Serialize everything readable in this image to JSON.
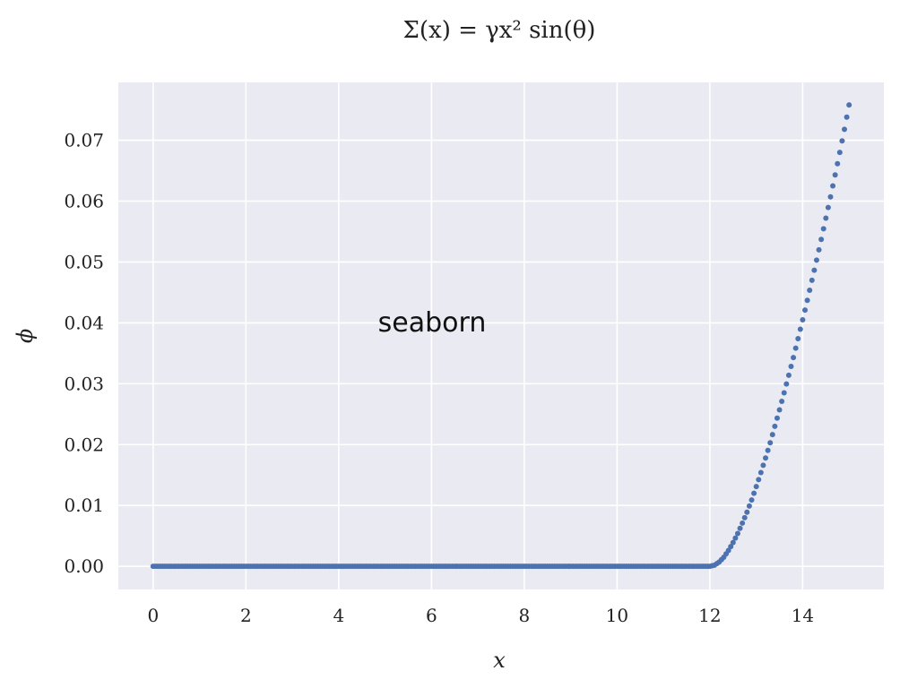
{
  "chart_data": {
    "type": "scatter",
    "title": "Σ(x) = γx² sin(θ)",
    "xlabel": "x",
    "ylabel": "ϕ",
    "xlim": [
      -0.75,
      15.75
    ],
    "ylim": [
      -0.0038,
      0.0795
    ],
    "xticks": [
      0,
      2,
      4,
      6,
      8,
      10,
      12,
      14
    ],
    "xtick_labels": [
      "0",
      "2",
      "4",
      "6",
      "8",
      "10",
      "12",
      "14"
    ],
    "yticks": [
      0.0,
      0.01,
      0.02,
      0.03,
      0.04,
      0.05,
      0.06,
      0.07
    ],
    "ytick_labels": [
      "0.00",
      "0.01",
      "0.02",
      "0.03",
      "0.04",
      "0.05",
      "0.06",
      "0.07"
    ],
    "grid": true,
    "legend": "none",
    "annotation": "seaborn",
    "colors": {
      "background": "#eaeaf2",
      "grid": "#ffffff",
      "marker": "#4c72b0"
    },
    "series": [
      {
        "x": [
          0.0,
          0.5,
          1.0,
          1.5,
          2.0,
          2.5,
          3.0,
          3.5,
          4.0,
          4.5,
          5.0,
          5.5,
          6.0,
          6.5,
          7.0,
          7.5,
          8.0,
          8.5,
          9.0,
          9.5,
          10.0,
          10.5,
          11.0,
          11.5,
          12.0,
          12.1,
          12.2,
          12.3,
          12.4,
          12.5,
          12.6,
          12.7,
          12.8,
          12.9,
          13.0,
          13.1,
          13.2,
          13.3,
          13.4,
          13.5,
          13.6,
          13.7,
          13.8,
          13.9,
          14.0,
          14.1,
          14.2,
          14.3,
          14.4,
          14.5,
          14.6,
          14.7,
          14.8,
          14.9,
          15.0
        ],
        "y": [
          0.0,
          0.0,
          0.0,
          0.0,
          0.0,
          0.0,
          0.0,
          0.0,
          0.0,
          0.0,
          0.0,
          0.0,
          0.0,
          0.0,
          0.0,
          0.0,
          0.0,
          0.0,
          0.0,
          0.0,
          0.0,
          0.0,
          0.0,
          0.0,
          0.0,
          0.0002,
          0.0007,
          0.0015,
          0.0026,
          0.0039,
          0.0054,
          0.0071,
          0.0089,
          0.0109,
          0.0131,
          0.0154,
          0.0178,
          0.0203,
          0.023,
          0.0257,
          0.0285,
          0.0314,
          0.0343,
          0.0374,
          0.0405,
          0.0437,
          0.047,
          0.0503,
          0.0537,
          0.0572,
          0.0607,
          0.0643,
          0.068,
          0.0718,
          0.0758
        ]
      }
    ]
  }
}
